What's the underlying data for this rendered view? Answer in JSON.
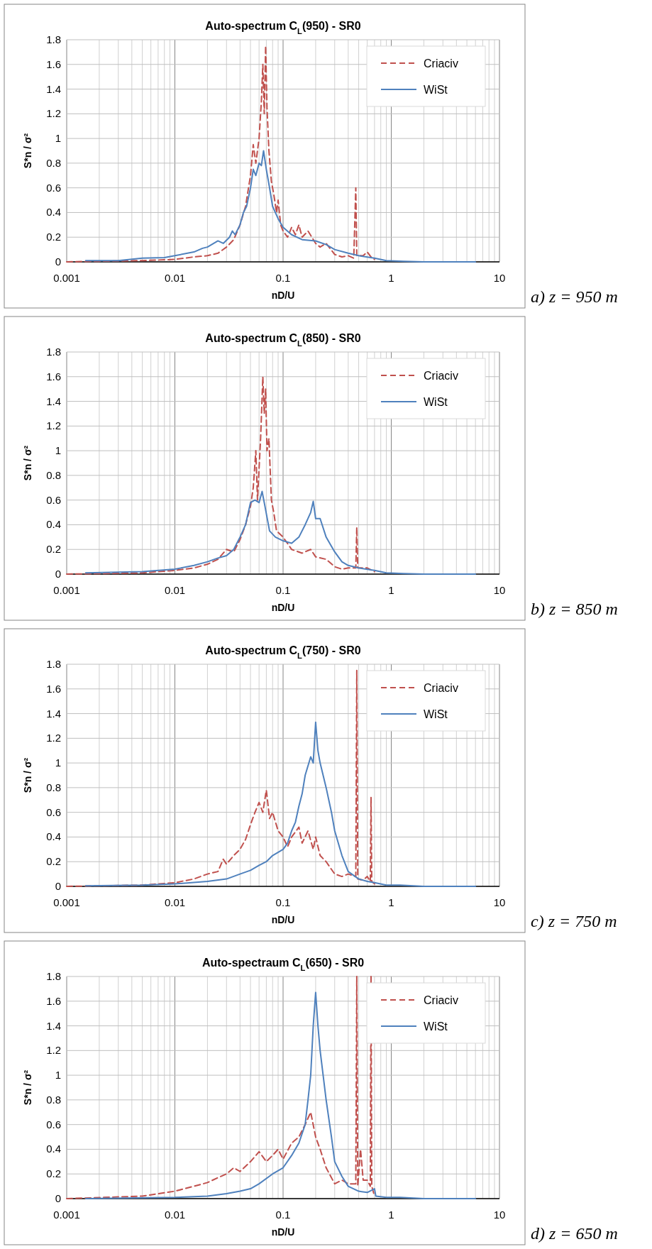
{
  "chart_data": [
    {
      "type": "line",
      "title": "Auto-spectrum C$_{L}$(950) - SR0",
      "xlabel": "nD/U",
      "ylabel": "S*n / σ²",
      "annotations": [
        "a) z = 950 m"
      ],
      "log": "x",
      "xlim": [
        0.001,
        10
      ],
      "xticks": [
        0.001,
        0.01,
        0.1,
        1,
        10
      ],
      "ylim": [
        0,
        1.8
      ],
      "yticks": [
        0,
        0.2,
        0.4,
        0.6,
        0.8,
        1,
        1.2,
        1.4,
        1.6,
        1.8
      ],
      "grid": true,
      "legend": "top right",
      "series": [
        {
          "name": "Criaciv",
          "color": "#c0504d",
          "line_style": "dashed",
          "x": [
            0.001,
            0.002,
            0.005,
            0.01,
            0.015,
            0.02,
            0.025,
            0.03,
            0.035,
            0.04,
            0.045,
            0.05,
            0.053,
            0.056,
            0.06,
            0.063,
            0.065,
            0.067,
            0.069,
            0.071,
            0.074,
            0.078,
            0.082,
            0.087,
            0.09,
            0.095,
            0.1,
            0.11,
            0.12,
            0.13,
            0.14,
            0.15,
            0.17,
            0.2,
            0.22,
            0.25,
            0.3,
            0.35,
            0.4,
            0.45,
            0.47,
            0.48,
            0.55,
            0.6,
            0.65,
            0.7
          ],
          "values": [
            0,
            0.005,
            0.01,
            0.02,
            0.04,
            0.05,
            0.07,
            0.12,
            0.18,
            0.3,
            0.45,
            0.7,
            0.95,
            0.8,
            1.0,
            1.3,
            1.6,
            1.2,
            1.75,
            1.25,
            0.9,
            0.65,
            0.55,
            0.4,
            0.5,
            0.3,
            0.25,
            0.2,
            0.28,
            0.22,
            0.3,
            0.2,
            0.25,
            0.15,
            0.12,
            0.15,
            0.06,
            0.04,
            0.05,
            0.03,
            0.6,
            0.05,
            0.05,
            0.08,
            0.04,
            0.02
          ]
        },
        {
          "name": "WiSt",
          "color": "#4f81bd",
          "line_style": "solid",
          "x": [
            0.0015,
            0.003,
            0.005,
            0.008,
            0.01,
            0.015,
            0.018,
            0.02,
            0.025,
            0.028,
            0.032,
            0.034,
            0.036,
            0.04,
            0.043,
            0.046,
            0.05,
            0.053,
            0.056,
            0.06,
            0.063,
            0.066,
            0.07,
            0.075,
            0.08,
            0.09,
            0.1,
            0.12,
            0.15,
            0.2,
            0.25,
            0.3,
            0.4,
            0.5,
            0.7,
            0.9,
            1.3,
            2,
            6
          ],
          "values": [
            0.01,
            0.01,
            0.03,
            0.035,
            0.05,
            0.08,
            0.11,
            0.12,
            0.17,
            0.15,
            0.2,
            0.25,
            0.22,
            0.3,
            0.4,
            0.45,
            0.6,
            0.75,
            0.7,
            0.8,
            0.78,
            0.9,
            0.75,
            0.6,
            0.45,
            0.35,
            0.28,
            0.22,
            0.18,
            0.17,
            0.14,
            0.1,
            0.07,
            0.05,
            0.03,
            0.01,
            0.005,
            0,
            0
          ]
        }
      ]
    },
    {
      "type": "line",
      "title": "Auto-spectrum C$_{L}$(850) - SR0",
      "xlabel": "nD/U",
      "ylabel": "S*n / σ²",
      "annotations": [
        "b) z = 850 m"
      ],
      "log": "x",
      "xlim": [
        0.001,
        10
      ],
      "xticks": [
        0.001,
        0.01,
        0.1,
        1,
        10
      ],
      "ylim": [
        0,
        1.8
      ],
      "yticks": [
        0,
        0.2,
        0.4,
        0.6,
        0.8,
        1,
        1.2,
        1.4,
        1.6,
        1.8
      ],
      "grid": true,
      "legend": "top right",
      "series": [
        {
          "name": "Criaciv",
          "color": "#c0504d",
          "line_style": "dashed",
          "x": [
            0.001,
            0.005,
            0.01,
            0.015,
            0.02,
            0.025,
            0.03,
            0.035,
            0.04,
            0.045,
            0.05,
            0.053,
            0.056,
            0.058,
            0.062,
            0.065,
            0.067,
            0.069,
            0.071,
            0.074,
            0.078,
            0.082,
            0.087,
            0.1,
            0.12,
            0.15,
            0.18,
            0.2,
            0.25,
            0.3,
            0.35,
            0.4,
            0.47,
            0.48,
            0.49,
            0.6,
            0.7
          ],
          "values": [
            0,
            0.01,
            0.03,
            0.05,
            0.08,
            0.12,
            0.2,
            0.18,
            0.28,
            0.4,
            0.55,
            0.7,
            1.0,
            0.6,
            1.1,
            1.6,
            1.3,
            1.5,
            1.0,
            1.1,
            0.6,
            0.5,
            0.35,
            0.3,
            0.2,
            0.17,
            0.2,
            0.14,
            0.12,
            0.06,
            0.04,
            0.05,
            0.05,
            0.38,
            0.05,
            0.05,
            0.02
          ]
        },
        {
          "name": "WiSt",
          "color": "#4f81bd",
          "line_style": "solid",
          "x": [
            0.0015,
            0.005,
            0.01,
            0.015,
            0.02,
            0.025,
            0.03,
            0.035,
            0.04,
            0.045,
            0.05,
            0.055,
            0.06,
            0.064,
            0.068,
            0.075,
            0.085,
            0.1,
            0.12,
            0.14,
            0.16,
            0.18,
            0.19,
            0.2,
            0.22,
            0.25,
            0.3,
            0.35,
            0.4,
            0.5,
            0.7,
            0.9,
            1.3,
            2,
            6
          ],
          "values": [
            0.01,
            0.02,
            0.04,
            0.07,
            0.1,
            0.13,
            0.15,
            0.2,
            0.3,
            0.4,
            0.58,
            0.6,
            0.58,
            0.67,
            0.55,
            0.35,
            0.3,
            0.27,
            0.25,
            0.3,
            0.4,
            0.5,
            0.59,
            0.45,
            0.45,
            0.3,
            0.18,
            0.1,
            0.07,
            0.05,
            0.03,
            0.01,
            0.005,
            0,
            0
          ]
        }
      ]
    },
    {
      "type": "line",
      "title": "Auto-spectrum C$_{L}$(750) - SR0",
      "xlabel": "nD/U",
      "ylabel": "S*n / σ²",
      "annotations": [
        "c) z = 750 m"
      ],
      "log": "x",
      "xlim": [
        0.001,
        10
      ],
      "xticks": [
        0.001,
        0.01,
        0.1,
        1,
        10
      ],
      "ylim": [
        0,
        1.8
      ],
      "yticks": [
        0,
        0.2,
        0.4,
        0.6,
        0.8,
        1,
        1.2,
        1.4,
        1.6,
        1.8
      ],
      "grid": true,
      "legend": "top right",
      "series": [
        {
          "name": "Criaciv",
          "color": "#c0504d",
          "line_style": "dashed",
          "x": [
            0.001,
            0.005,
            0.01,
            0.015,
            0.02,
            0.025,
            0.028,
            0.03,
            0.035,
            0.04,
            0.045,
            0.05,
            0.055,
            0.06,
            0.065,
            0.07,
            0.075,
            0.08,
            0.09,
            0.1,
            0.11,
            0.12,
            0.14,
            0.15,
            0.17,
            0.19,
            0.2,
            0.22,
            0.25,
            0.3,
            0.35,
            0.4,
            0.47,
            0.48,
            0.49,
            0.55,
            0.6,
            0.64,
            0.65,
            0.66,
            0.7
          ],
          "values": [
            0,
            0.01,
            0.03,
            0.06,
            0.1,
            0.12,
            0.22,
            0.18,
            0.25,
            0.3,
            0.38,
            0.5,
            0.6,
            0.68,
            0.6,
            0.78,
            0.55,
            0.6,
            0.45,
            0.4,
            0.32,
            0.4,
            0.48,
            0.35,
            0.45,
            0.3,
            0.4,
            0.25,
            0.2,
            0.1,
            0.08,
            0.1,
            0.08,
            1.75,
            0.06,
            0.05,
            0.08,
            0.04,
            0.72,
            0.04,
            0.02
          ]
        },
        {
          "name": "WiSt",
          "color": "#4f81bd",
          "line_style": "solid",
          "x": [
            0.0015,
            0.005,
            0.01,
            0.02,
            0.03,
            0.04,
            0.05,
            0.06,
            0.07,
            0.08,
            0.1,
            0.11,
            0.12,
            0.13,
            0.14,
            0.15,
            0.16,
            0.18,
            0.19,
            0.2,
            0.21,
            0.22,
            0.25,
            0.28,
            0.3,
            0.35,
            0.4,
            0.5,
            0.6,
            0.7,
            0.9,
            1.2,
            2,
            6
          ],
          "values": [
            0.005,
            0.01,
            0.02,
            0.04,
            0.06,
            0.1,
            0.13,
            0.17,
            0.2,
            0.25,
            0.3,
            0.35,
            0.45,
            0.52,
            0.65,
            0.75,
            0.9,
            1.05,
            1.0,
            1.33,
            1.1,
            1.0,
            0.8,
            0.6,
            0.45,
            0.25,
            0.12,
            0.06,
            0.04,
            0.03,
            0.01,
            0.01,
            0,
            0
          ]
        }
      ]
    },
    {
      "type": "line",
      "title": "Auto-spectraum C$_{L}$(650) - SR0",
      "xlabel": "nD/U",
      "ylabel": "S*n / σ²",
      "annotations": [
        "d) z = 650 m"
      ],
      "log": "x",
      "xlim": [
        0.001,
        10
      ],
      "xticks": [
        0.001,
        0.01,
        0.1,
        1,
        10
      ],
      "ylim": [
        0,
        1.8
      ],
      "yticks": [
        0,
        0.2,
        0.4,
        0.6,
        0.8,
        1,
        1.2,
        1.4,
        1.6,
        1.8
      ],
      "grid": true,
      "legend": "top right",
      "series": [
        {
          "name": "Criaciv",
          "color": "#c0504d",
          "line_style": "dashed",
          "x": [
            0.001,
            0.005,
            0.01,
            0.015,
            0.02,
            0.025,
            0.03,
            0.035,
            0.04,
            0.05,
            0.06,
            0.07,
            0.08,
            0.09,
            0.1,
            0.12,
            0.14,
            0.16,
            0.18,
            0.2,
            0.22,
            0.25,
            0.3,
            0.35,
            0.4,
            0.47,
            0.48,
            0.49,
            0.52,
            0.55,
            0.6,
            0.64,
            0.65,
            0.66,
            0.7
          ],
          "values": [
            0,
            0.02,
            0.06,
            0.1,
            0.13,
            0.17,
            0.2,
            0.25,
            0.22,
            0.3,
            0.38,
            0.3,
            0.35,
            0.4,
            0.32,
            0.45,
            0.5,
            0.6,
            0.7,
            0.5,
            0.4,
            0.25,
            0.12,
            0.15,
            0.12,
            0.12,
            1.8,
            0.1,
            0.4,
            0.15,
            0.15,
            0.1,
            1.8,
            0.1,
            0.02
          ]
        },
        {
          "name": "WiSt",
          "color": "#4f81bd",
          "line_style": "solid",
          "x": [
            0.0015,
            0.01,
            0.02,
            0.03,
            0.04,
            0.05,
            0.06,
            0.08,
            0.1,
            0.12,
            0.14,
            0.16,
            0.17,
            0.18,
            0.19,
            0.2,
            0.21,
            0.22,
            0.25,
            0.28,
            0.3,
            0.35,
            0.4,
            0.5,
            0.6,
            0.7,
            0.72,
            0.9,
            1.2,
            2,
            6
          ],
          "values": [
            0,
            0.01,
            0.02,
            0.04,
            0.06,
            0.08,
            0.12,
            0.2,
            0.25,
            0.35,
            0.45,
            0.6,
            0.8,
            1.0,
            1.4,
            1.67,
            1.4,
            1.2,
            0.8,
            0.5,
            0.3,
            0.18,
            0.1,
            0.06,
            0.05,
            0.08,
            0.02,
            0.01,
            0.01,
            0,
            0
          ]
        }
      ]
    }
  ]
}
